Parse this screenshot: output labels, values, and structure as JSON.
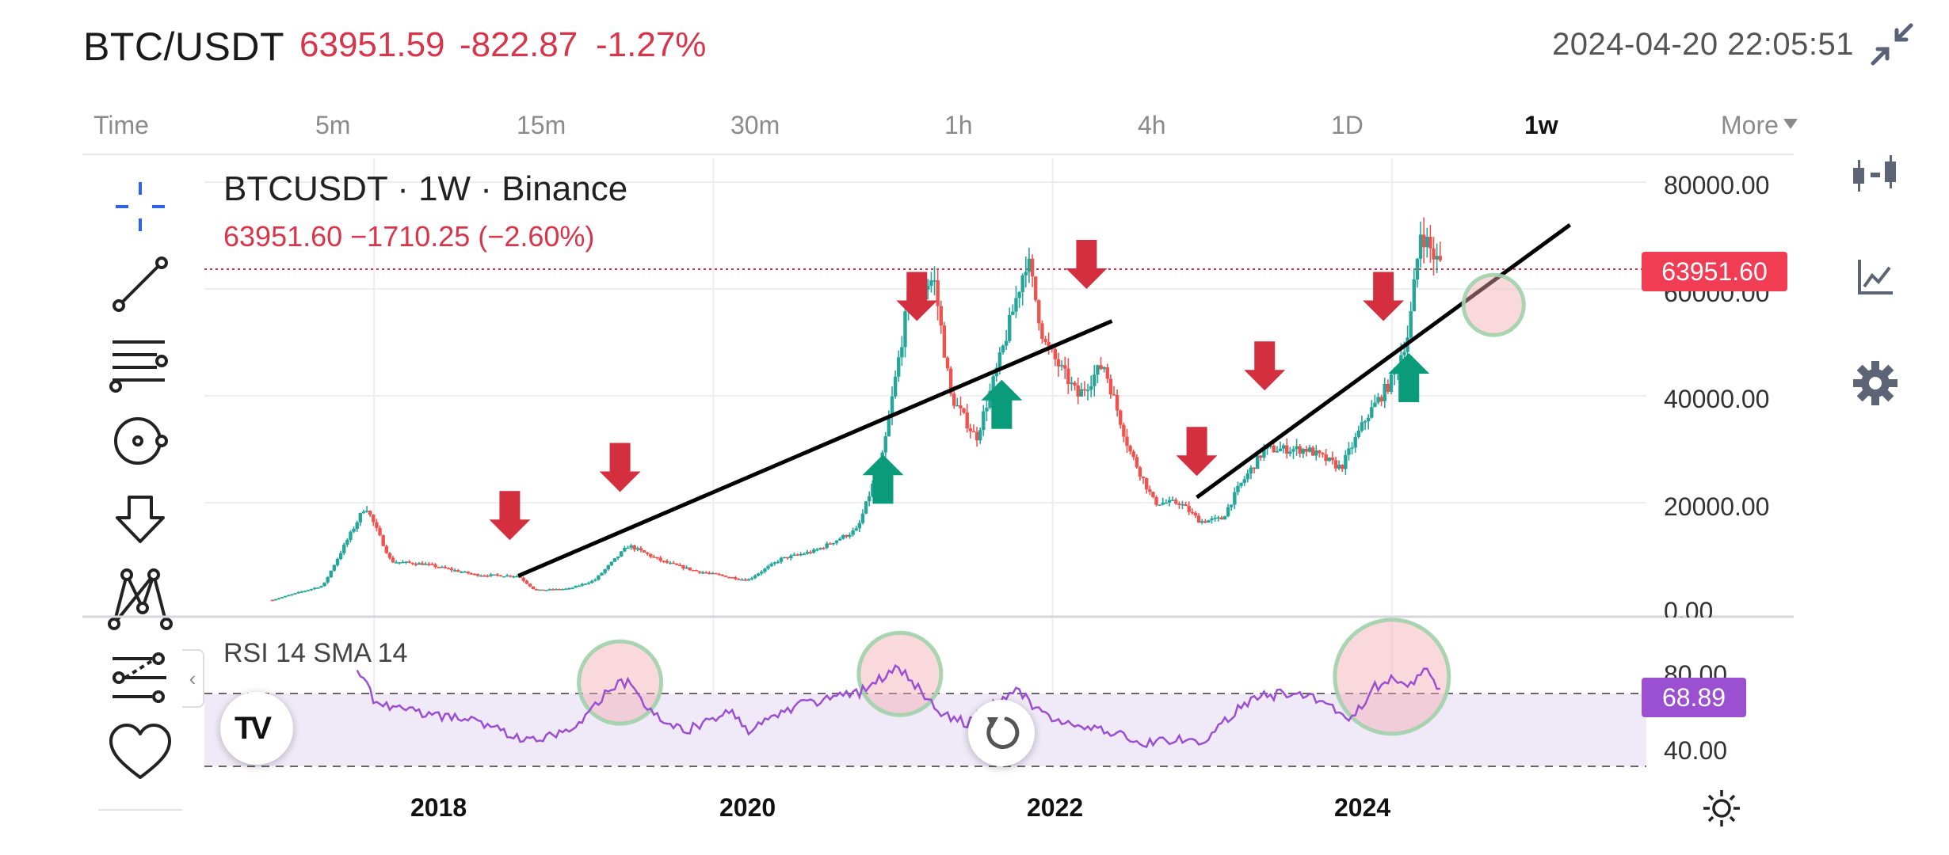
{
  "header": {
    "pair": "BTC/USDT",
    "last_price": "63951.59",
    "change": "-822.87",
    "change_pct": "-1.27%",
    "datetime": "2024-04-20 22:05:51",
    "collapse_icon": "collapse-arrows-icon"
  },
  "timeframes": {
    "items": [
      "Time",
      "5m",
      "15m",
      "30m",
      "1h",
      "4h",
      "1D",
      "1w",
      "More"
    ],
    "active": "1w"
  },
  "drawing_tools": [
    "crosshair-icon",
    "trend-line-icon",
    "fib-levels-icon",
    "circle-tool-icon",
    "arrow-down-icon",
    "pattern-icon",
    "forecast-icon",
    "favorite-heart-icon"
  ],
  "right_tools": [
    "indicators-icon",
    "chart-style-icon",
    "settings-gear-icon"
  ],
  "chart": {
    "title": "BTCUSDT · 1W · Binance",
    "ohlc_line": "63951.60  −1710.25 (−2.60%)",
    "price_tag": "63951.60",
    "y_ticks": [
      "80000.00",
      "60000.00",
      "40000.00",
      "20000.00",
      "0.00"
    ],
    "x_ticks": [
      "2018",
      "2020",
      "2022",
      "2024"
    ],
    "up_color": "#26a69a",
    "down_color": "#ef5350",
    "arrow_up_color": "#0a9b7a",
    "arrow_down_color": "#d32f3f"
  },
  "rsi": {
    "label": "RSI 14 SMA 14",
    "value_tag": "68.89",
    "y_ticks": [
      "80.00",
      "40.00"
    ],
    "line_color": "#9b4fd1",
    "band_color": "#efe9f8"
  },
  "controls": {
    "reset_icon": "reset-rotate-icon",
    "theme_icon": "sun-icon",
    "logo": "TV"
  },
  "chart_data": {
    "type": "candlestick",
    "title": "BTCUSDT · 1W · Binance",
    "ylim": [
      0,
      80000
    ],
    "x_range": [
      2017.0,
      2025.5
    ],
    "price_anchors": [
      [
        2017.4,
        1800
      ],
      [
        2017.7,
        4500
      ],
      [
        2017.95,
        19500
      ],
      [
        2018.1,
        9000
      ],
      [
        2018.3,
        8500
      ],
      [
        2018.6,
        6500
      ],
      [
        2018.85,
        6300
      ],
      [
        2018.95,
        3600
      ],
      [
        2019.15,
        3900
      ],
      [
        2019.3,
        5500
      ],
      [
        2019.5,
        12000
      ],
      [
        2019.7,
        9000
      ],
      [
        2019.9,
        7200
      ],
      [
        2020.2,
        5500
      ],
      [
        2020.4,
        9500
      ],
      [
        2020.6,
        11000
      ],
      [
        2020.85,
        15000
      ],
      [
        2021.0,
        29000
      ],
      [
        2021.15,
        58000
      ],
      [
        2021.3,
        62000
      ],
      [
        2021.4,
        40000
      ],
      [
        2021.55,
        32000
      ],
      [
        2021.7,
        48000
      ],
      [
        2021.85,
        66000
      ],
      [
        2021.95,
        50000
      ],
      [
        2022.15,
        40000
      ],
      [
        2022.3,
        46000
      ],
      [
        2022.45,
        30000
      ],
      [
        2022.6,
        20000
      ],
      [
        2022.75,
        20000
      ],
      [
        2022.87,
        16500
      ],
      [
        2023.0,
        17000
      ],
      [
        2023.1,
        23000
      ],
      [
        2023.25,
        30000
      ],
      [
        2023.5,
        30000
      ],
      [
        2023.7,
        26500
      ],
      [
        2023.85,
        36000
      ],
      [
        2024.0,
        43000
      ],
      [
        2024.1,
        52000
      ],
      [
        2024.17,
        71000
      ],
      [
        2024.25,
        66000
      ],
      [
        2024.3,
        63951
      ]
    ],
    "trend_lines": [
      {
        "from": [
          2018.85,
          6300
        ],
        "to": [
          2022.35,
          54000
        ]
      },
      {
        "from": [
          2022.85,
          21000
        ],
        "to": [
          2025.05,
          72000
        ]
      }
    ],
    "arrows_down": [
      [
        2018.8,
        13000
      ],
      [
        2019.45,
        22000
      ],
      [
        2021.2,
        54000
      ],
      [
        2022.2,
        60000
      ],
      [
        2022.85,
        25000
      ],
      [
        2023.25,
        41000
      ],
      [
        2023.95,
        54000
      ]
    ],
    "arrows_up": [
      [
        2021.0,
        29000
      ],
      [
        2021.7,
        43000
      ],
      [
        2024.1,
        48000
      ]
    ],
    "highlight_circles_price": [
      [
        2024.6,
        57000
      ]
    ],
    "rsi_ylim": [
      20,
      100
    ],
    "rsi_anchors": [
      [
        2017.9,
        90
      ],
      [
        2018.0,
        65
      ],
      [
        2018.3,
        55
      ],
      [
        2018.6,
        52
      ],
      [
        2018.85,
        40
      ],
      [
        2019.0,
        38
      ],
      [
        2019.2,
        50
      ],
      [
        2019.4,
        75
      ],
      [
        2019.5,
        78
      ],
      [
        2019.65,
        55
      ],
      [
        2019.85,
        45
      ],
      [
        2020.1,
        60
      ],
      [
        2020.2,
        45
      ],
      [
        2020.5,
        62
      ],
      [
        2020.7,
        68
      ],
      [
        2020.85,
        70
      ],
      [
        2021.0,
        82
      ],
      [
        2021.1,
        88
      ],
      [
        2021.2,
        75
      ],
      [
        2021.35,
        55
      ],
      [
        2021.5,
        50
      ],
      [
        2021.65,
        62
      ],
      [
        2021.8,
        72
      ],
      [
        2021.95,
        55
      ],
      [
        2022.1,
        50
      ],
      [
        2022.3,
        45
      ],
      [
        2022.45,
        40
      ],
      [
        2022.55,
        35
      ],
      [
        2022.75,
        40
      ],
      [
        2022.9,
        38
      ],
      [
        2023.1,
        60
      ],
      [
        2023.2,
        68
      ],
      [
        2023.35,
        70
      ],
      [
        2023.6,
        66
      ],
      [
        2023.75,
        52
      ],
      [
        2023.9,
        75
      ],
      [
        2024.0,
        80
      ],
      [
        2024.1,
        76
      ],
      [
        2024.2,
        86
      ],
      [
        2024.3,
        68.89
      ]
    ],
    "highlight_circles_rsi": [
      [
        2019.45,
        78
      ],
      [
        2021.1,
        84
      ],
      [
        2024.0,
        82
      ]
    ]
  }
}
